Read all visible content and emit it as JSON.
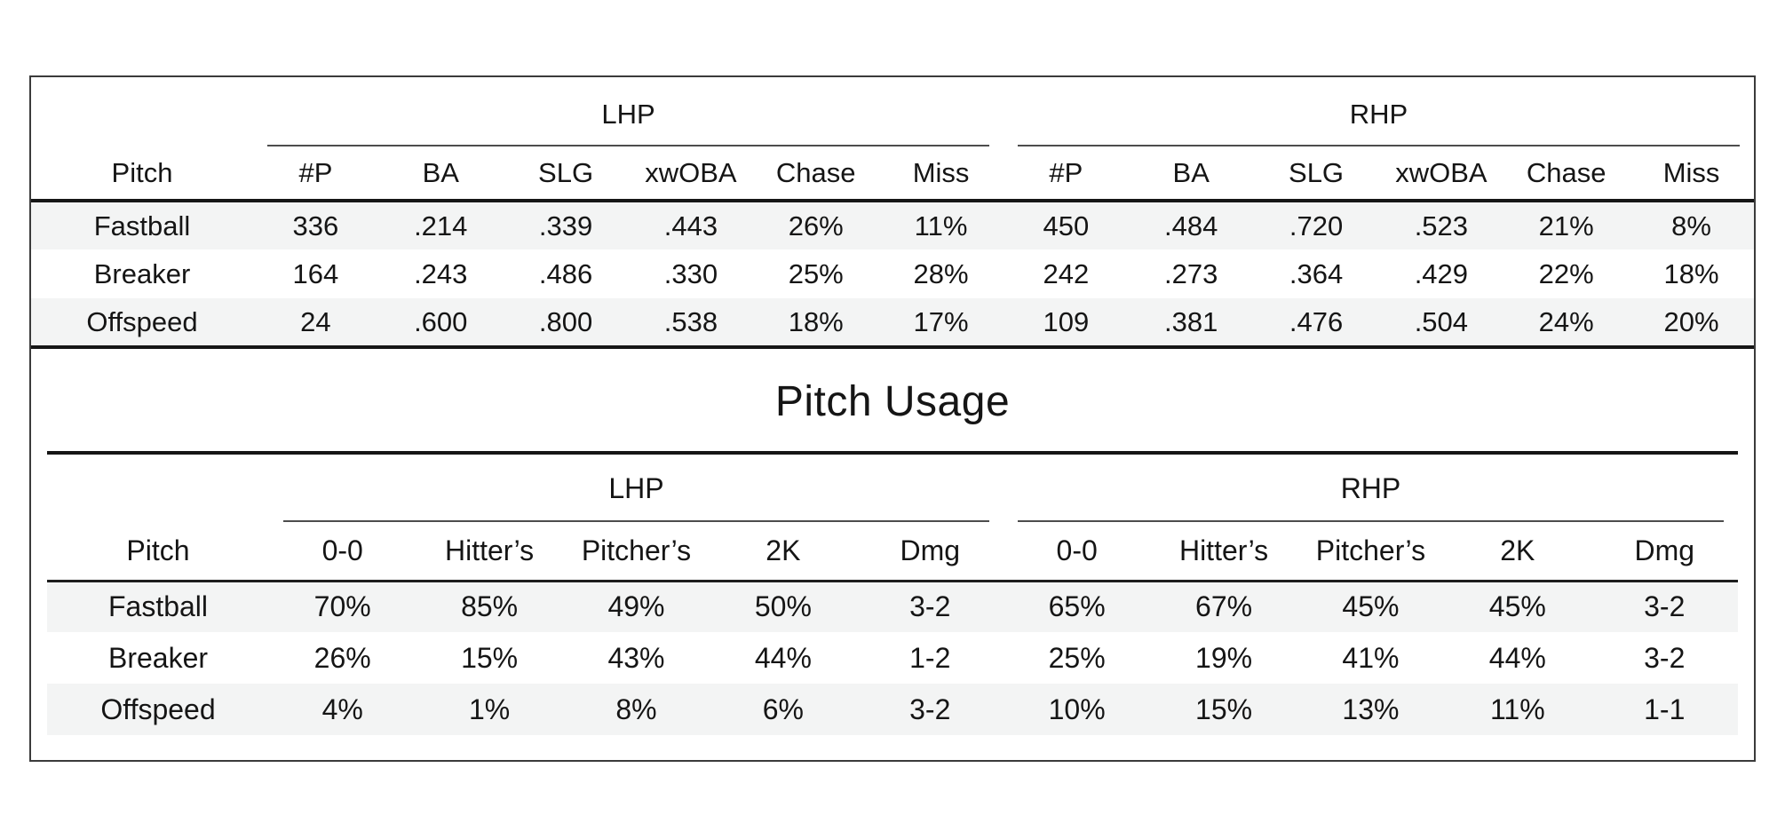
{
  "colors": {
    "background": "#ffffff",
    "text": "#151515",
    "stripe": "#f3f4f4",
    "heavy_rule": "#161616",
    "group_rule": "#4d4d4d",
    "panel_border": "#3b3b3b"
  },
  "stats_table": {
    "group_headers": [
      "LHP",
      "RHP"
    ],
    "pitch_col_header": "Pitch",
    "columns": [
      "#P",
      "BA",
      "SLG",
      "xwOBA",
      "Chase",
      "Miss"
    ],
    "rows": [
      {
        "pitch": "Fastball",
        "lhp": [
          "336",
          ".214",
          ".339",
          ".443",
          "26%",
          "11%"
        ],
        "rhp": [
          "450",
          ".484",
          ".720",
          ".523",
          "21%",
          "8%"
        ]
      },
      {
        "pitch": "Breaker",
        "lhp": [
          "164",
          ".243",
          ".486",
          ".330",
          "25%",
          "28%"
        ],
        "rhp": [
          "242",
          ".273",
          ".364",
          ".429",
          "22%",
          "18%"
        ]
      },
      {
        "pitch": "Offspeed",
        "lhp": [
          "24",
          ".600",
          ".800",
          ".538",
          "18%",
          "17%"
        ],
        "rhp": [
          "109",
          ".381",
          ".476",
          ".504",
          "24%",
          "20%"
        ]
      }
    ]
  },
  "usage_table": {
    "title": "Pitch Usage",
    "group_headers": [
      "LHP",
      "RHP"
    ],
    "pitch_col_header": "Pitch",
    "columns": [
      "0-0",
      "Hitter’s",
      "Pitcher’s",
      "2K",
      "Dmg"
    ],
    "rows": [
      {
        "pitch": "Fastball",
        "lhp": [
          "70%",
          "85%",
          "49%",
          "50%",
          "3-2"
        ],
        "rhp": [
          "65%",
          "67%",
          "45%",
          "45%",
          "3-2"
        ]
      },
      {
        "pitch": "Breaker",
        "lhp": [
          "26%",
          "15%",
          "43%",
          "44%",
          "1-2"
        ],
        "rhp": [
          "25%",
          "19%",
          "41%",
          "44%",
          "3-2"
        ]
      },
      {
        "pitch": "Offspeed",
        "lhp": [
          "4%",
          "1%",
          "8%",
          "6%",
          "3-2"
        ],
        "rhp": [
          "10%",
          "15%",
          "13%",
          "11%",
          "1-1"
        ]
      }
    ]
  },
  "chart_data": [
    {
      "type": "table",
      "title": "",
      "group_spanners": [
        {
          "label": "LHP",
          "span": 6
        },
        {
          "label": "RHP",
          "span": 6
        }
      ],
      "columns": [
        "Pitch",
        "#P",
        "BA",
        "SLG",
        "xwOBA",
        "Chase",
        "Miss",
        "#P",
        "BA",
        "SLG",
        "xwOBA",
        "Chase",
        "Miss"
      ],
      "rows": [
        [
          "Fastball",
          "336",
          ".214",
          ".339",
          ".443",
          "26%",
          "11%",
          "450",
          ".484",
          ".720",
          ".523",
          "21%",
          "8%"
        ],
        [
          "Breaker",
          "164",
          ".243",
          ".486",
          ".330",
          "25%",
          "28%",
          "242",
          ".273",
          ".364",
          ".429",
          "22%",
          "18%"
        ],
        [
          "Offspeed",
          "24",
          ".600",
          ".800",
          ".538",
          "18%",
          "17%",
          "109",
          ".381",
          ".476",
          ".504",
          "24%",
          "20%"
        ]
      ],
      "layout": {
        "zebra_striping": true,
        "striped_rows": [
          1,
          3
        ]
      }
    },
    {
      "type": "table",
      "title": "Pitch Usage",
      "group_spanners": [
        {
          "label": "LHP",
          "span": 5
        },
        {
          "label": "RHP",
          "span": 5
        }
      ],
      "columns": [
        "Pitch",
        "0-0",
        "Hitter’s",
        "Pitcher’s",
        "2K",
        "Dmg",
        "0-0",
        "Hitter’s",
        "Pitcher’s",
        "2K",
        "Dmg"
      ],
      "rows": [
        [
          "Fastball",
          "70%",
          "85%",
          "49%",
          "50%",
          "3-2",
          "65%",
          "67%",
          "45%",
          "45%",
          "3-2"
        ],
        [
          "Breaker",
          "26%",
          "15%",
          "43%",
          "44%",
          "1-2",
          "25%",
          "19%",
          "41%",
          "44%",
          "3-2"
        ],
        [
          "Offspeed",
          "4%",
          "1%",
          "8%",
          "6%",
          "3-2",
          "10%",
          "15%",
          "13%",
          "11%",
          "1-1"
        ]
      ],
      "layout": {
        "zebra_striping": true,
        "striped_rows": [
          1,
          3
        ]
      }
    }
  ]
}
